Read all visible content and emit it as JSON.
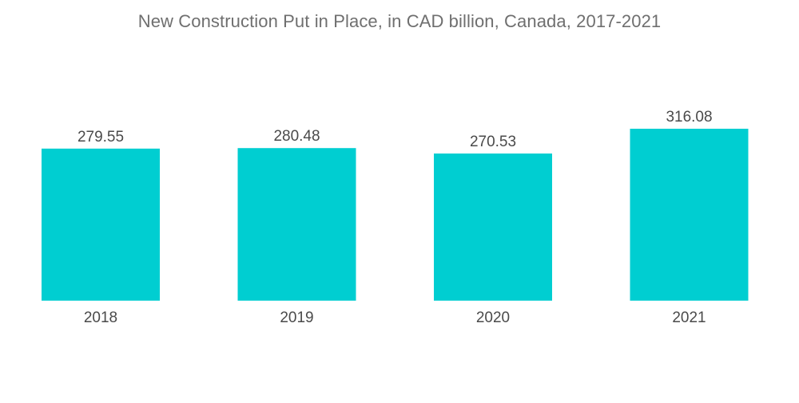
{
  "chart_data": {
    "type": "bar",
    "title": "New Construction Put in Place, in CAD billion, Canada, 2017-2021",
    "categories": [
      "2018",
      "2019",
      "2020",
      "2021"
    ],
    "values": [
      279.55,
      280.48,
      270.53,
      316.08
    ],
    "value_labels": [
      "279.55",
      "280.48",
      "270.53",
      "316.08"
    ],
    "xlabel": "",
    "ylabel": "",
    "ylim": [
      0,
      316.08
    ],
    "grid": false,
    "legend": "none",
    "bar_color": "#00CED1"
  }
}
